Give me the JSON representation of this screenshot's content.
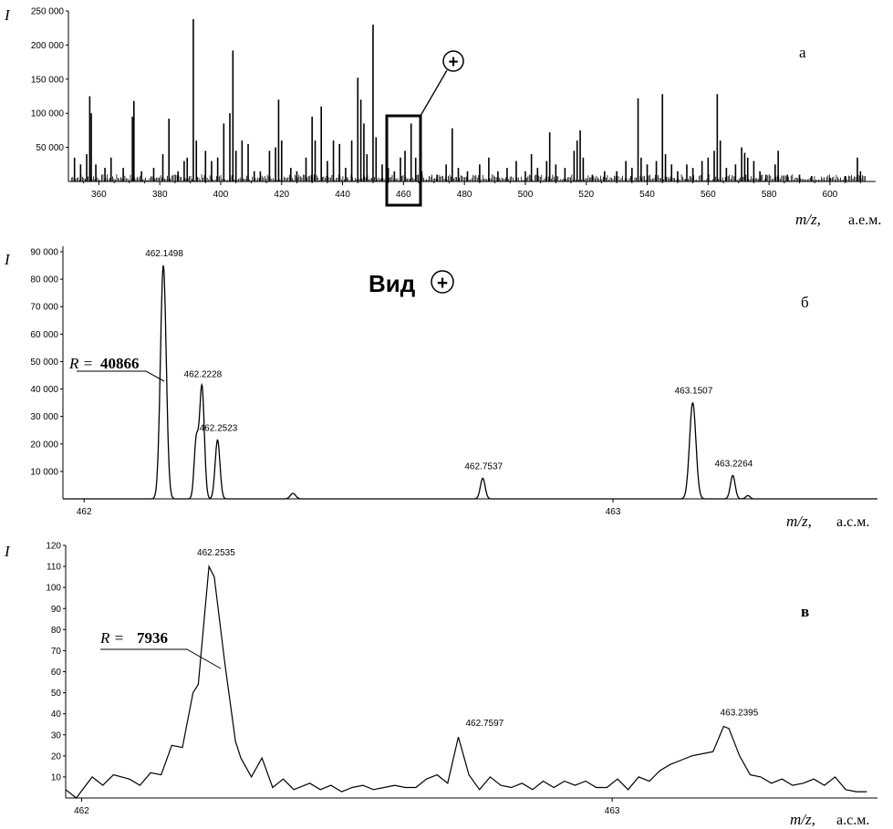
{
  "chart_data": [
    {
      "type": "line",
      "panel_letter": "а",
      "ylabel": "I",
      "xlabel": "m/z,",
      "xunit": "а.е.м.",
      "xlim": [
        350,
        615
      ],
      "ylim": [
        0,
        250000
      ],
      "yticks": [
        {
          "value": 50000,
          "label": "50 000"
        },
        {
          "value": 100000,
          "label": "100 000"
        },
        {
          "value": 150000,
          "label": "150 000"
        },
        {
          "value": 200000,
          "label": "200 000"
        },
        {
          "value": 250000,
          "label": "250 000"
        }
      ],
      "xticks": [
        {
          "value": 360,
          "label": "360"
        },
        {
          "value": 380,
          "label": "380"
        },
        {
          "value": 400,
          "label": "400"
        },
        {
          "value": 420,
          "label": "420"
        },
        {
          "value": 440,
          "label": "440"
        },
        {
          "value": 460,
          "label": "460"
        },
        {
          "value": 480,
          "label": "480"
        },
        {
          "value": 500,
          "label": "500"
        },
        {
          "value": 520,
          "label": "520"
        },
        {
          "value": 540,
          "label": "540"
        },
        {
          "value": 560,
          "label": "560"
        },
        {
          "value": 580,
          "label": "580"
        },
        {
          "value": 600,
          "label": "600"
        }
      ],
      "peaks": [
        {
          "x": 352,
          "y": 35000
        },
        {
          "x": 354,
          "y": 25000
        },
        {
          "x": 356,
          "y": 40000
        },
        {
          "x": 357,
          "y": 125000
        },
        {
          "x": 357.5,
          "y": 100000
        },
        {
          "x": 359,
          "y": 25000
        },
        {
          "x": 362,
          "y": 20000
        },
        {
          "x": 364,
          "y": 35000
        },
        {
          "x": 368,
          "y": 20000
        },
        {
          "x": 371,
          "y": 95000
        },
        {
          "x": 371.5,
          "y": 118000
        },
        {
          "x": 374,
          "y": 15000
        },
        {
          "x": 378,
          "y": 20000
        },
        {
          "x": 381,
          "y": 40000
        },
        {
          "x": 383,
          "y": 92000
        },
        {
          "x": 386,
          "y": 15000
        },
        {
          "x": 388,
          "y": 30000
        },
        {
          "x": 389,
          "y": 35000
        },
        {
          "x": 391,
          "y": 238000
        },
        {
          "x": 392,
          "y": 60000
        },
        {
          "x": 395,
          "y": 45000
        },
        {
          "x": 397,
          "y": 30000
        },
        {
          "x": 399,
          "y": 35000
        },
        {
          "x": 401,
          "y": 85000
        },
        {
          "x": 403,
          "y": 100000
        },
        {
          "x": 404,
          "y": 192000
        },
        {
          "x": 405,
          "y": 45000
        },
        {
          "x": 407,
          "y": 60000
        },
        {
          "x": 409,
          "y": 55000
        },
        {
          "x": 411,
          "y": 15000
        },
        {
          "x": 413,
          "y": 15000
        },
        {
          "x": 416,
          "y": 45000
        },
        {
          "x": 418,
          "y": 50000
        },
        {
          "x": 419,
          "y": 120000
        },
        {
          "x": 420,
          "y": 60000
        },
        {
          "x": 423,
          "y": 20000
        },
        {
          "x": 425,
          "y": 15000
        },
        {
          "x": 428,
          "y": 35000
        },
        {
          "x": 430,
          "y": 95000
        },
        {
          "x": 431,
          "y": 60000
        },
        {
          "x": 433,
          "y": 110000
        },
        {
          "x": 435,
          "y": 30000
        },
        {
          "x": 437,
          "y": 60000
        },
        {
          "x": 439,
          "y": 55000
        },
        {
          "x": 441,
          "y": 20000
        },
        {
          "x": 443,
          "y": 60000
        },
        {
          "x": 445,
          "y": 152000
        },
        {
          "x": 446,
          "y": 120000
        },
        {
          "x": 447,
          "y": 85000
        },
        {
          "x": 448,
          "y": 40000
        },
        {
          "x": 450,
          "y": 230000
        },
        {
          "x": 451,
          "y": 65000
        },
        {
          "x": 453,
          "y": 25000
        },
        {
          "x": 455,
          "y": 20000
        },
        {
          "x": 457,
          "y": 15000
        },
        {
          "x": 459,
          "y": 35000
        },
        {
          "x": 460.5,
          "y": 45000
        },
        {
          "x": 462.5,
          "y": 85000
        },
        {
          "x": 464,
          "y": 35000
        },
        {
          "x": 466,
          "y": 15000
        },
        {
          "x": 471,
          "y": 10000
        },
        {
          "x": 474,
          "y": 25000
        },
        {
          "x": 476,
          "y": 78000
        },
        {
          "x": 478,
          "y": 20000
        },
        {
          "x": 481,
          "y": 15000
        },
        {
          "x": 485,
          "y": 25000
        },
        {
          "x": 488,
          "y": 35000
        },
        {
          "x": 491,
          "y": 15000
        },
        {
          "x": 494,
          "y": 20000
        },
        {
          "x": 497,
          "y": 30000
        },
        {
          "x": 500,
          "y": 15000
        },
        {
          "x": 502,
          "y": 40000
        },
        {
          "x": 504,
          "y": 20000
        },
        {
          "x": 507,
          "y": 30000
        },
        {
          "x": 508,
          "y": 72000
        },
        {
          "x": 510,
          "y": 25000
        },
        {
          "x": 513,
          "y": 20000
        },
        {
          "x": 516,
          "y": 45000
        },
        {
          "x": 517,
          "y": 60000
        },
        {
          "x": 518,
          "y": 75000
        },
        {
          "x": 519,
          "y": 35000
        },
        {
          "x": 522,
          "y": 10000
        },
        {
          "x": 526,
          "y": 15000
        },
        {
          "x": 530,
          "y": 15000
        },
        {
          "x": 533,
          "y": 30000
        },
        {
          "x": 535,
          "y": 20000
        },
        {
          "x": 537,
          "y": 122000
        },
        {
          "x": 538,
          "y": 35000
        },
        {
          "x": 540,
          "y": 25000
        },
        {
          "x": 543,
          "y": 30000
        },
        {
          "x": 545,
          "y": 128000
        },
        {
          "x": 546,
          "y": 40000
        },
        {
          "x": 548,
          "y": 25000
        },
        {
          "x": 550,
          "y": 15000
        },
        {
          "x": 553,
          "y": 25000
        },
        {
          "x": 555,
          "y": 20000
        },
        {
          "x": 558,
          "y": 30000
        },
        {
          "x": 560,
          "y": 35000
        },
        {
          "x": 562,
          "y": 45000
        },
        {
          "x": 563,
          "y": 128000
        },
        {
          "x": 564,
          "y": 60000
        },
        {
          "x": 566,
          "y": 20000
        },
        {
          "x": 569,
          "y": 25000
        },
        {
          "x": 571,
          "y": 50000
        },
        {
          "x": 572,
          "y": 42000
        },
        {
          "x": 573,
          "y": 35000
        },
        {
          "x": 575,
          "y": 30000
        },
        {
          "x": 577,
          "y": 15000
        },
        {
          "x": 579,
          "y": 10000
        },
        {
          "x": 582,
          "y": 25000
        },
        {
          "x": 583,
          "y": 45000
        },
        {
          "x": 586,
          "y": 10000
        },
        {
          "x": 590,
          "y": 10000
        },
        {
          "x": 594,
          "y": 8000
        },
        {
          "x": 600,
          "y": 5000
        },
        {
          "x": 605,
          "y": 8000
        },
        {
          "x": 609,
          "y": 35000
        },
        {
          "x": 610,
          "y": 15000
        }
      ],
      "inset_marker": {
        "label": "+"
      }
    },
    {
      "type": "line",
      "panel_letter": "б",
      "title": "Вид",
      "title_symbol": "+",
      "ylabel": "I",
      "xlabel": "m/z,",
      "xunit": "а.с.м.",
      "xlim": [
        461.96,
        463.5
      ],
      "ylim": [
        0,
        92000
      ],
      "yticks": [
        {
          "value": 10000,
          "label": "10 000"
        },
        {
          "value": 20000,
          "label": "20 000"
        },
        {
          "value": 30000,
          "label": "30 000"
        },
        {
          "value": 40000,
          "label": "40 000"
        },
        {
          "value": 50000,
          "label": "50 000"
        },
        {
          "value": 60000,
          "label": "60 000"
        },
        {
          "value": 70000,
          "label": "70 000"
        },
        {
          "value": 80000,
          "label": "80 000"
        },
        {
          "value": 90000,
          "label": "90 000"
        }
      ],
      "xticks": [
        {
          "value": 462,
          "label": "462"
        },
        {
          "value": 463,
          "label": "463"
        }
      ],
      "peaks": [
        {
          "x": 462.1498,
          "y": 85000,
          "w": 0.0055,
          "label": "462.1498"
        },
        {
          "x": 462.2228,
          "y": 41000,
          "w": 0.0045,
          "label": "462.2228"
        },
        {
          "x": 462.2523,
          "y": 21500,
          "w": 0.0045,
          "label": "462.2523"
        },
        {
          "x": 462.212,
          "y": 21000,
          "w": 0.004
        },
        {
          "x": 462.395,
          "y": 2000,
          "w": 0.005
        },
        {
          "x": 462.7537,
          "y": 7500,
          "w": 0.0045,
          "label": "462.7537"
        },
        {
          "x": 463.1507,
          "y": 35000,
          "w": 0.006,
          "label": "463.1507"
        },
        {
          "x": 463.2264,
          "y": 8500,
          "w": 0.0045,
          "label": "463.2264"
        },
        {
          "x": 463.255,
          "y": 1200,
          "w": 0.004
        }
      ],
      "resolution": {
        "prefix": "R =",
        "value": "40866"
      }
    },
    {
      "type": "line",
      "panel_letter": "в",
      "ylabel": "I",
      "xlabel": "m/z,",
      "xunit": "а.с.м.",
      "xlim": [
        461.97,
        463.5
      ],
      "ylim": [
        0,
        120
      ],
      "yticks": [
        {
          "value": 10,
          "label": "10"
        },
        {
          "value": 20,
          "label": "20"
        },
        {
          "value": 30,
          "label": "30"
        },
        {
          "value": 40,
          "label": "40"
        },
        {
          "value": 50,
          "label": "50"
        },
        {
          "value": 60,
          "label": "60"
        },
        {
          "value": 70,
          "label": "70"
        },
        {
          "value": 80,
          "label": "80"
        },
        {
          "value": 90,
          "label": "90"
        },
        {
          "value": 100,
          "label": "100"
        },
        {
          "value": 110,
          "label": "110"
        },
        {
          "value": 120,
          "label": "120"
        }
      ],
      "xticks": [
        {
          "value": 462,
          "label": "462"
        },
        {
          "value": 463,
          "label": "463"
        }
      ],
      "series": [
        {
          "x": [
            461.97,
            461.99,
            462.02,
            462.04,
            462.06,
            462.09,
            462.11,
            462.13,
            462.15,
            462.17,
            462.19,
            462.21,
            462.22,
            462.24,
            462.25,
            462.27,
            462.29,
            462.3,
            462.32,
            462.34,
            462.36,
            462.38,
            462.4,
            462.43,
            462.45,
            462.47,
            462.49,
            462.51,
            462.53,
            462.55,
            462.57,
            462.59,
            462.61,
            462.63,
            462.65,
            462.67,
            462.69,
            462.71,
            462.73,
            462.75,
            462.77,
            462.79,
            462.81,
            462.83,
            462.85,
            462.87,
            462.89,
            462.91,
            462.93,
            462.95,
            462.97,
            462.99,
            463.01,
            463.03,
            463.05,
            463.07,
            463.09,
            463.11,
            463.13,
            463.15,
            463.17,
            463.19,
            463.21,
            463.22,
            463.24,
            463.26,
            463.28,
            463.3,
            463.32,
            463.34,
            463.36,
            463.38,
            463.4,
            463.42,
            463.44,
            463.46,
            463.48
          ],
          "y": [
            4,
            0,
            10,
            6,
            11,
            9,
            6,
            12,
            11,
            25,
            24,
            50,
            54,
            110,
            105,
            64,
            27,
            19,
            10,
            19,
            5,
            9,
            4,
            7,
            4,
            6,
            3,
            5,
            6,
            4,
            5,
            6,
            5,
            5,
            9,
            11,
            7,
            29,
            11,
            4,
            10,
            6,
            5,
            7,
            4,
            8,
            5,
            8,
            6,
            8,
            5,
            5,
            9,
            4,
            10,
            8,
            13,
            16,
            18,
            20,
            21,
            22,
            34,
            33,
            20,
            11,
            10,
            7,
            9,
            6,
            7,
            9,
            6,
            10,
            4,
            3,
            3
          ]
        }
      ],
      "labels": [
        {
          "x": 462.2535,
          "y": 110,
          "text": "462.2535"
        },
        {
          "x": 462.7597,
          "y": 29,
          "text": "462.7597"
        },
        {
          "x": 463.2395,
          "y": 34,
          "text": "463.2395"
        }
      ],
      "resolution": {
        "prefix": "R =",
        "value": "7936"
      }
    }
  ]
}
